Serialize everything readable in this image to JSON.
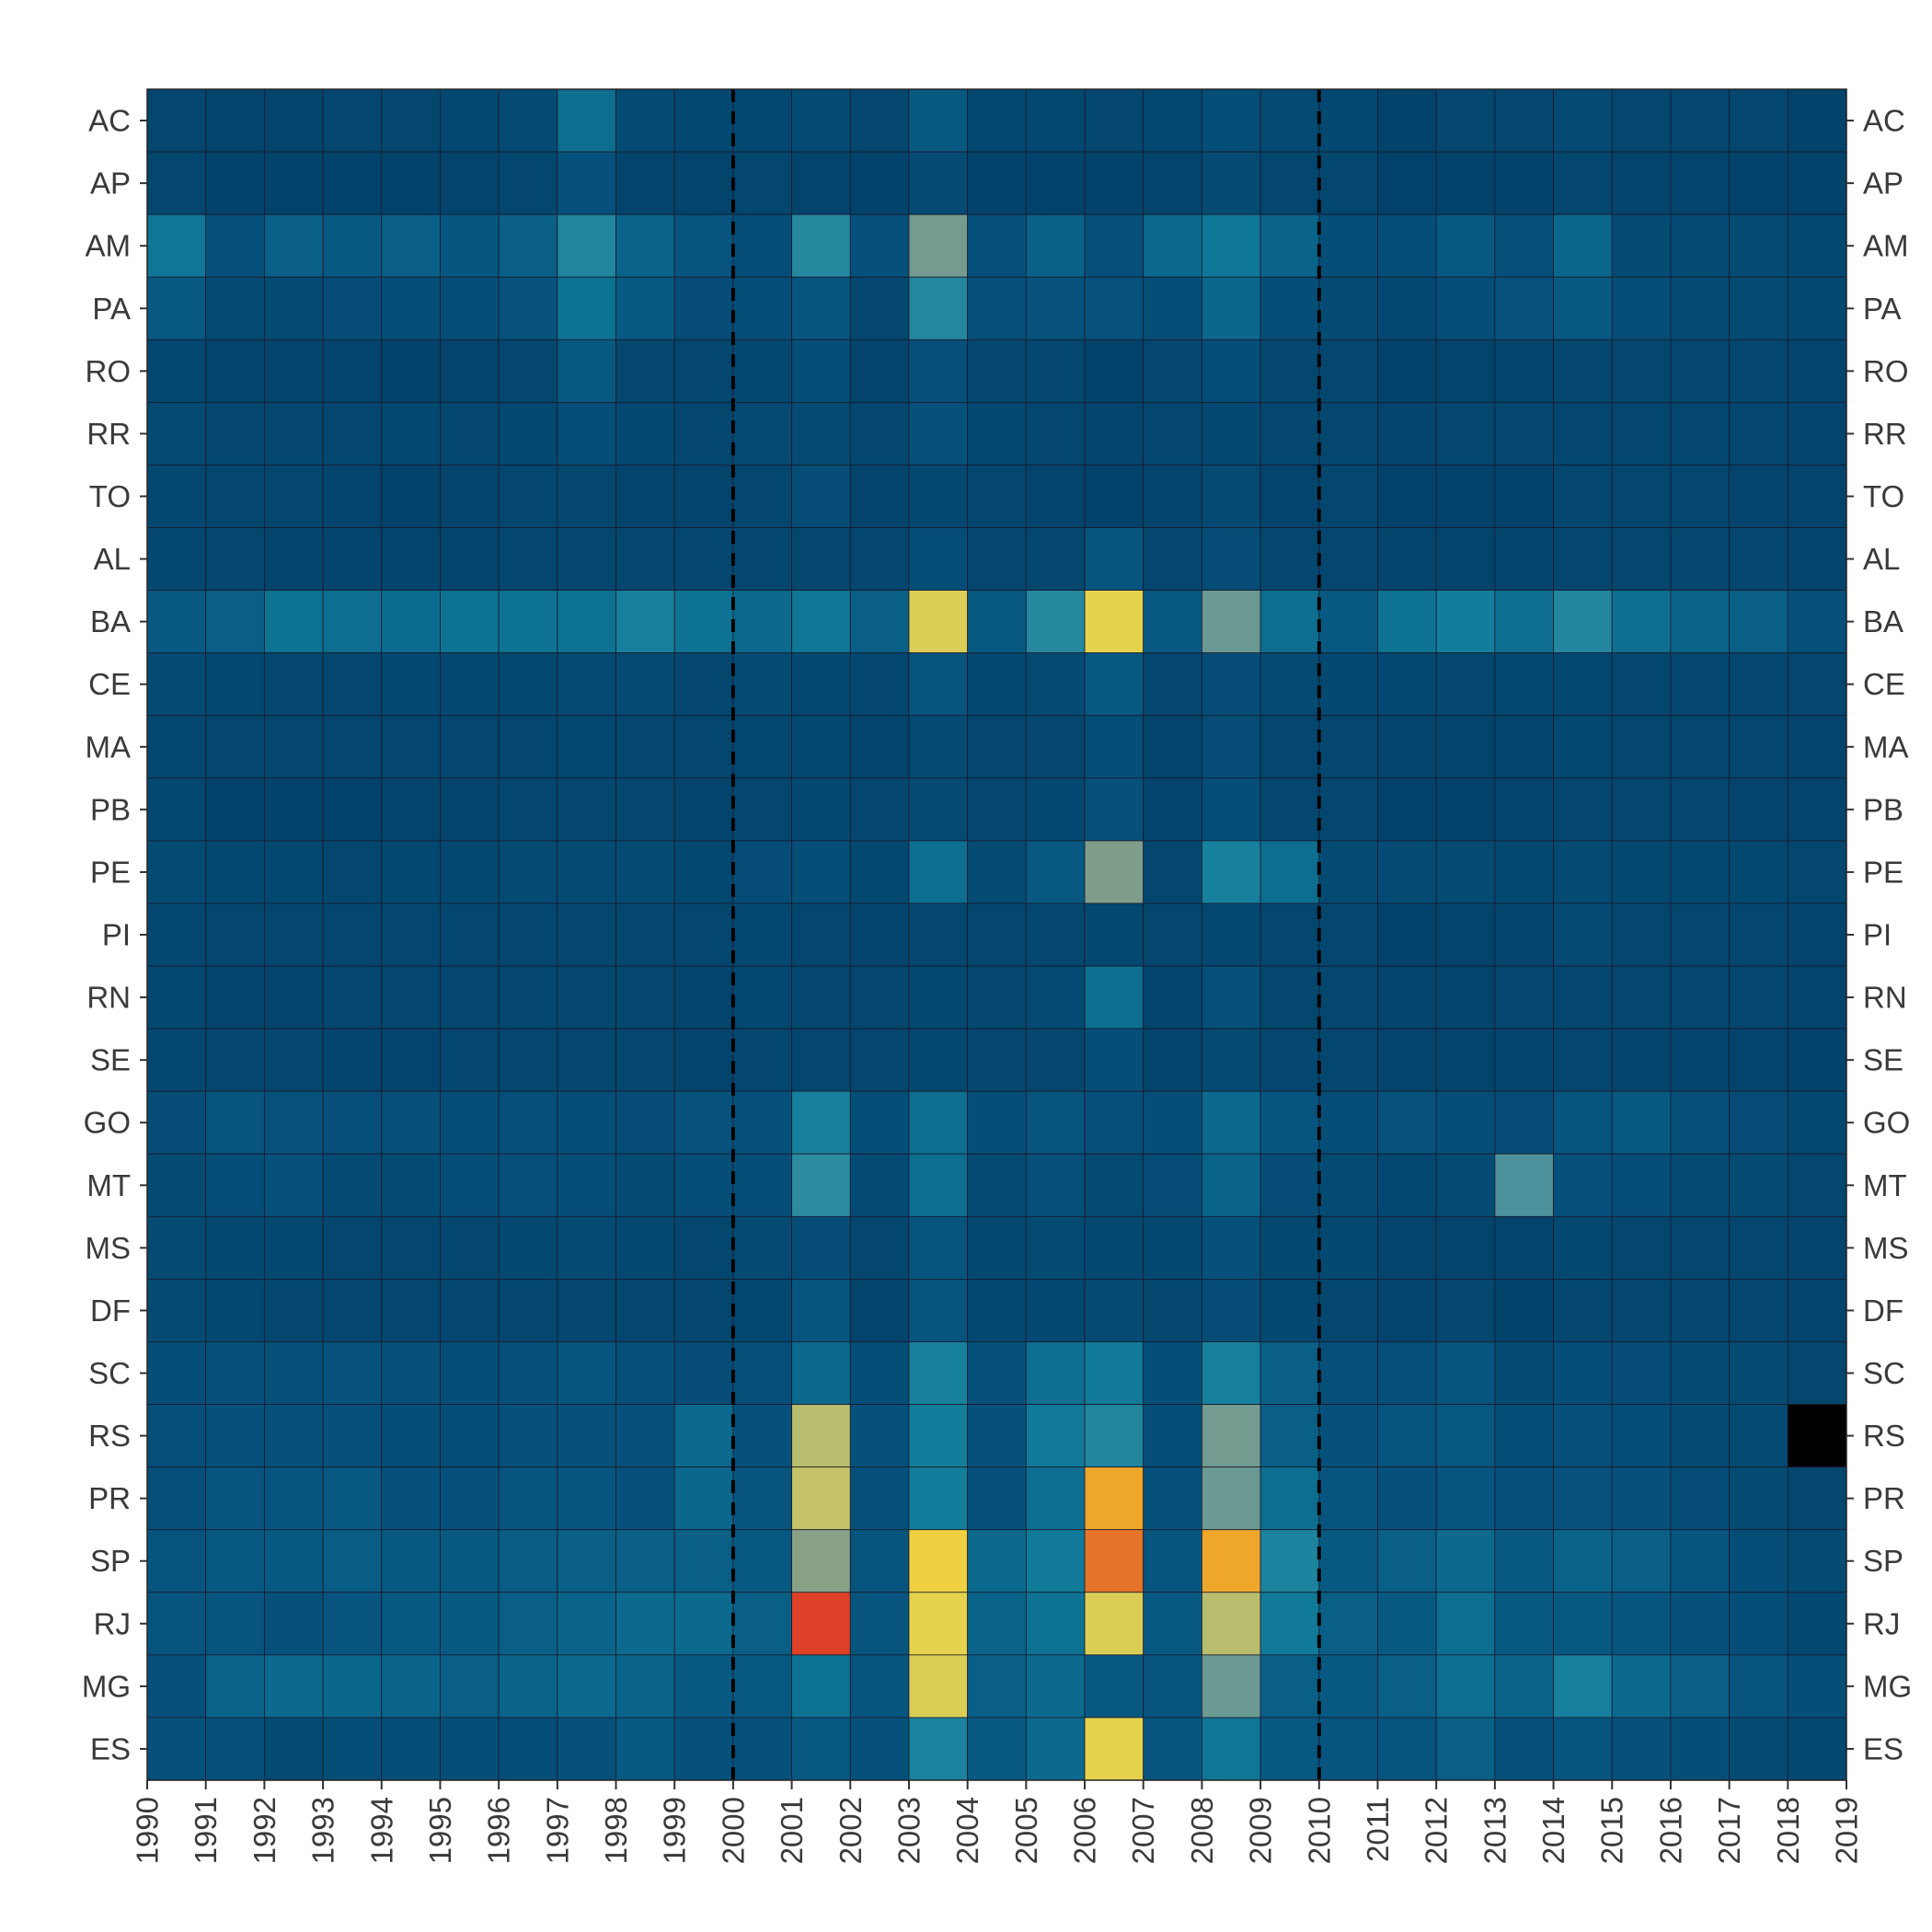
{
  "chart_data": {
    "type": "heatmap",
    "title": "",
    "xlabel": "",
    "ylabel": "",
    "x": [
      "1990",
      "1991",
      "1992",
      "1993",
      "1994",
      "1995",
      "1996",
      "1997",
      "1998",
      "1999",
      "2000",
      "2001",
      "2002",
      "2003",
      "2004",
      "2005",
      "2006",
      "2007",
      "2008",
      "2009",
      "2010",
      "2011",
      "2012",
      "2013",
      "2014",
      "2015",
      "2016",
      "2017",
      "2018",
      "2019"
    ],
    "y": [
      "AC",
      "AP",
      "AM",
      "PA",
      "RO",
      "RR",
      "TO",
      "AL",
      "BA",
      "CE",
      "MA",
      "PB",
      "PE",
      "PI",
      "RN",
      "SE",
      "GO",
      "MT",
      "MS",
      "DF",
      "SC",
      "RS",
      "PR",
      "SP",
      "RJ",
      "MG",
      "ES"
    ],
    "cell_columns": [
      "1990",
      "1991",
      "1992",
      "1993",
      "1994",
      "1995",
      "1996",
      "1997",
      "1998",
      "1999",
      "2000",
      "2001",
      "2002",
      "2003",
      "2004",
      "2005",
      "2006",
      "2007",
      "2008",
      "2009",
      "2010",
      "2011",
      "2012",
      "2013",
      "2014",
      "2015",
      "2016",
      "2017",
      "2018"
    ],
    "value_scale": "relative intensity 0-1 (colour scale not labelled in image)",
    "colors": {
      "scale": [
        "#013c63",
        "#03476f",
        "#07547f",
        "#0c6d8f",
        "#137f9c",
        "#2a8aa0",
        "#5a949a",
        "#86a088",
        "#bdc06c",
        "#efd847",
        "#f0b52c",
        "#dd4127"
      ],
      "missing": "#000000",
      "grid": "#1a1a2a",
      "reference_line": "#000000"
    },
    "missing_cells": [
      {
        "row": "RS",
        "column": "2018"
      }
    ],
    "reference_lines_x": [
      "2000",
      "2010"
    ],
    "values": [
      [
        0.08,
        0.07,
        0.07,
        0.08,
        0.09,
        0.1,
        0.12,
        0.28,
        0.12,
        0.1,
        0.1,
        0.12,
        0.08,
        0.2,
        0.1,
        0.1,
        0.08,
        0.1,
        0.14,
        0.11,
        0.1,
        0.06,
        0.09,
        0.08,
        0.11,
        0.08,
        0.08,
        0.08,
        0.06
      ],
      [
        0.08,
        0.06,
        0.06,
        0.06,
        0.06,
        0.07,
        0.08,
        0.16,
        0.07,
        0.07,
        0.08,
        0.07,
        0.06,
        0.12,
        0.06,
        0.06,
        0.06,
        0.07,
        0.11,
        0.08,
        0.08,
        0.05,
        0.06,
        0.06,
        0.08,
        0.07,
        0.07,
        0.06,
        0.06
      ],
      [
        0.32,
        0.16,
        0.22,
        0.2,
        0.22,
        0.19,
        0.22,
        0.42,
        0.24,
        0.18,
        0.14,
        0.44,
        0.16,
        0.6,
        0.16,
        0.23,
        0.15,
        0.26,
        0.33,
        0.24,
        0.14,
        0.14,
        0.2,
        0.15,
        0.25,
        0.12,
        0.12,
        0.12,
        0.1
      ],
      [
        0.2,
        0.12,
        0.12,
        0.13,
        0.14,
        0.14,
        0.17,
        0.3,
        0.2,
        0.13,
        0.14,
        0.18,
        0.09,
        0.43,
        0.15,
        0.17,
        0.17,
        0.14,
        0.25,
        0.14,
        0.12,
        0.1,
        0.14,
        0.17,
        0.2,
        0.14,
        0.12,
        0.11,
        0.1
      ],
      [
        0.1,
        0.07,
        0.07,
        0.07,
        0.06,
        0.07,
        0.09,
        0.2,
        0.09,
        0.08,
        0.1,
        0.14,
        0.07,
        0.15,
        0.09,
        0.09,
        0.06,
        0.08,
        0.14,
        0.09,
        0.09,
        0.06,
        0.07,
        0.07,
        0.09,
        0.09,
        0.08,
        0.08,
        0.07
      ],
      [
        0.12,
        0.09,
        0.09,
        0.09,
        0.1,
        0.09,
        0.1,
        0.14,
        0.1,
        0.09,
        0.11,
        0.11,
        0.09,
        0.16,
        0.1,
        0.08,
        0.07,
        0.09,
        0.1,
        0.09,
        0.09,
        0.07,
        0.09,
        0.08,
        0.09,
        0.09,
        0.09,
        0.08,
        0.07
      ],
      [
        0.1,
        0.08,
        0.08,
        0.07,
        0.06,
        0.07,
        0.09,
        0.09,
        0.07,
        0.07,
        0.09,
        0.13,
        0.07,
        0.1,
        0.08,
        0.07,
        0.06,
        0.07,
        0.11,
        0.07,
        0.08,
        0.06,
        0.06,
        0.06,
        0.09,
        0.08,
        0.08,
        0.07,
        0.07
      ],
      [
        0.1,
        0.08,
        0.07,
        0.07,
        0.07,
        0.07,
        0.08,
        0.09,
        0.09,
        0.08,
        0.09,
        0.09,
        0.08,
        0.14,
        0.08,
        0.09,
        0.18,
        0.08,
        0.13,
        0.09,
        0.09,
        0.07,
        0.07,
        0.07,
        0.08,
        0.08,
        0.08,
        0.08,
        0.07
      ],
      [
        0.2,
        0.22,
        0.3,
        0.28,
        0.27,
        0.3,
        0.3,
        0.3,
        0.38,
        0.3,
        0.26,
        0.32,
        0.22,
        0.78,
        0.2,
        0.44,
        0.8,
        0.2,
        0.58,
        0.28,
        0.2,
        0.3,
        0.36,
        0.28,
        0.42,
        0.28,
        0.24,
        0.22,
        0.16
      ],
      [
        0.12,
        0.1,
        0.09,
        0.09,
        0.1,
        0.1,
        0.1,
        0.11,
        0.11,
        0.09,
        0.12,
        0.1,
        0.09,
        0.18,
        0.1,
        0.12,
        0.2,
        0.08,
        0.13,
        0.11,
        0.1,
        0.1,
        0.09,
        0.1,
        0.1,
        0.09,
        0.09,
        0.09,
        0.08
      ],
      [
        0.1,
        0.08,
        0.08,
        0.08,
        0.08,
        0.08,
        0.09,
        0.1,
        0.09,
        0.08,
        0.1,
        0.1,
        0.07,
        0.12,
        0.09,
        0.08,
        0.14,
        0.07,
        0.13,
        0.08,
        0.09,
        0.07,
        0.07,
        0.07,
        0.1,
        0.08,
        0.08,
        0.08,
        0.07
      ],
      [
        0.1,
        0.06,
        0.06,
        0.06,
        0.07,
        0.07,
        0.08,
        0.09,
        0.08,
        0.07,
        0.09,
        0.1,
        0.08,
        0.11,
        0.09,
        0.1,
        0.16,
        0.07,
        0.14,
        0.09,
        0.09,
        0.06,
        0.06,
        0.07,
        0.08,
        0.08,
        0.08,
        0.07,
        0.07
      ],
      [
        0.12,
        0.1,
        0.1,
        0.09,
        0.1,
        0.1,
        0.11,
        0.12,
        0.12,
        0.1,
        0.13,
        0.14,
        0.1,
        0.28,
        0.11,
        0.2,
        0.62,
        0.09,
        0.38,
        0.28,
        0.12,
        0.12,
        0.11,
        0.1,
        0.11,
        0.1,
        0.1,
        0.1,
        0.08
      ],
      [
        0.1,
        0.08,
        0.08,
        0.08,
        0.09,
        0.08,
        0.09,
        0.09,
        0.09,
        0.08,
        0.1,
        0.08,
        0.07,
        0.09,
        0.08,
        0.09,
        0.1,
        0.08,
        0.1,
        0.08,
        0.09,
        0.06,
        0.07,
        0.07,
        0.11,
        0.09,
        0.08,
        0.08,
        0.07
      ],
      [
        0.1,
        0.07,
        0.07,
        0.08,
        0.08,
        0.08,
        0.09,
        0.09,
        0.08,
        0.07,
        0.1,
        0.09,
        0.08,
        0.1,
        0.09,
        0.11,
        0.28,
        0.07,
        0.15,
        0.09,
        0.09,
        0.07,
        0.07,
        0.08,
        0.09,
        0.08,
        0.08,
        0.08,
        0.07
      ],
      [
        0.1,
        0.08,
        0.08,
        0.07,
        0.07,
        0.08,
        0.09,
        0.08,
        0.08,
        0.07,
        0.09,
        0.08,
        0.08,
        0.1,
        0.09,
        0.08,
        0.14,
        0.07,
        0.11,
        0.09,
        0.08,
        0.07,
        0.07,
        0.07,
        0.08,
        0.07,
        0.07,
        0.07,
        0.06
      ],
      [
        0.13,
        0.18,
        0.17,
        0.15,
        0.15,
        0.14,
        0.15,
        0.14,
        0.13,
        0.17,
        0.16,
        0.38,
        0.14,
        0.28,
        0.14,
        0.18,
        0.15,
        0.14,
        0.26,
        0.18,
        0.14,
        0.17,
        0.14,
        0.13,
        0.18,
        0.2,
        0.15,
        0.13,
        0.1
      ],
      [
        0.12,
        0.14,
        0.16,
        0.12,
        0.12,
        0.14,
        0.15,
        0.14,
        0.12,
        0.14,
        0.14,
        0.46,
        0.12,
        0.28,
        0.12,
        0.15,
        0.11,
        0.13,
        0.24,
        0.13,
        0.12,
        0.1,
        0.12,
        0.52,
        0.16,
        0.14,
        0.12,
        0.12,
        0.09
      ],
      [
        0.11,
        0.1,
        0.1,
        0.09,
        0.09,
        0.09,
        0.1,
        0.11,
        0.1,
        0.09,
        0.11,
        0.13,
        0.08,
        0.18,
        0.1,
        0.12,
        0.1,
        0.1,
        0.16,
        0.1,
        0.1,
        0.07,
        0.07,
        0.07,
        0.1,
        0.09,
        0.08,
        0.08,
        0.07
      ],
      [
        0.11,
        0.1,
        0.09,
        0.08,
        0.08,
        0.08,
        0.09,
        0.08,
        0.08,
        0.08,
        0.1,
        0.18,
        0.07,
        0.18,
        0.1,
        0.1,
        0.11,
        0.09,
        0.13,
        0.1,
        0.09,
        0.07,
        0.08,
        0.06,
        0.09,
        0.08,
        0.08,
        0.08,
        0.07
      ],
      [
        0.14,
        0.16,
        0.15,
        0.17,
        0.15,
        0.14,
        0.16,
        0.18,
        0.15,
        0.13,
        0.15,
        0.26,
        0.14,
        0.38,
        0.16,
        0.28,
        0.34,
        0.14,
        0.38,
        0.22,
        0.15,
        0.15,
        0.18,
        0.12,
        0.14,
        0.13,
        0.12,
        0.12,
        0.08
      ],
      [
        0.15,
        0.16,
        0.16,
        0.16,
        0.14,
        0.14,
        0.16,
        0.16,
        0.16,
        0.26,
        0.16,
        0.72,
        0.16,
        0.36,
        0.16,
        0.34,
        0.42,
        0.14,
        0.6,
        0.22,
        0.16,
        0.18,
        0.2,
        0.14,
        0.16,
        0.14,
        0.12,
        0.11,
        -1
      ],
      [
        0.15,
        0.18,
        0.18,
        0.2,
        0.16,
        0.16,
        0.18,
        0.18,
        0.16,
        0.25,
        0.18,
        0.74,
        0.16,
        0.36,
        0.16,
        0.28,
        0.92,
        0.16,
        0.58,
        0.28,
        0.18,
        0.16,
        0.18,
        0.16,
        0.17,
        0.16,
        0.13,
        0.12,
        0.08
      ],
      [
        0.18,
        0.2,
        0.2,
        0.21,
        0.2,
        0.2,
        0.21,
        0.22,
        0.22,
        0.22,
        0.2,
        0.64,
        0.18,
        0.84,
        0.26,
        0.34,
        0.96,
        0.18,
        0.92,
        0.4,
        0.2,
        0.22,
        0.26,
        0.2,
        0.24,
        0.22,
        0.18,
        0.14,
        0.12
      ],
      [
        0.18,
        0.18,
        0.16,
        0.18,
        0.2,
        0.2,
        0.22,
        0.24,
        0.26,
        0.26,
        0.22,
        1.0,
        0.18,
        0.8,
        0.24,
        0.3,
        0.78,
        0.2,
        0.72,
        0.34,
        0.22,
        0.2,
        0.28,
        0.2,
        0.2,
        0.18,
        0.16,
        0.14,
        0.1
      ],
      [
        0.16,
        0.24,
        0.26,
        0.25,
        0.24,
        0.22,
        0.24,
        0.26,
        0.24,
        0.2,
        0.2,
        0.3,
        0.18,
        0.78,
        0.22,
        0.26,
        0.2,
        0.18,
        0.58,
        0.22,
        0.2,
        0.22,
        0.28,
        0.24,
        0.38,
        0.26,
        0.22,
        0.18,
        0.14
      ],
      [
        0.16,
        0.16,
        0.12,
        0.14,
        0.14,
        0.14,
        0.14,
        0.16,
        0.2,
        0.16,
        0.16,
        0.2,
        0.16,
        0.4,
        0.2,
        0.26,
        0.8,
        0.18,
        0.32,
        0.2,
        0.18,
        0.18,
        0.22,
        0.16,
        0.18,
        0.16,
        0.14,
        0.12,
        0.1
      ]
    ]
  }
}
